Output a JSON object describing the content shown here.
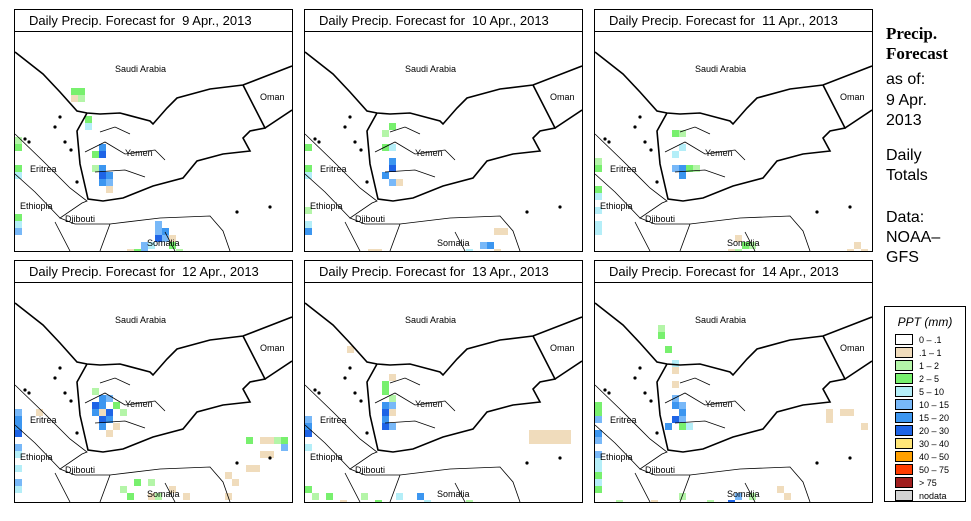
{
  "legend": {
    "title": "PPT (mm)",
    "items": [
      {
        "label": "0 – .1",
        "color": "#ffffff"
      },
      {
        "label": ".1 – 1",
        "color": "#f0dcbc"
      },
      {
        "label": "1 – 2",
        "color": "#b4f5a8"
      },
      {
        "label": "2 – 5",
        "color": "#78f06e"
      },
      {
        "label": "5 – 10",
        "color": "#b4eef8"
      },
      {
        "label": "10 – 15",
        "color": "#78b8f8"
      },
      {
        "label": "15 – 20",
        "color": "#3c96f0"
      },
      {
        "label": "20 – 30",
        "color": "#1e64e6"
      },
      {
        "label": "30 – 40",
        "color": "#ffe678"
      },
      {
        "label": "40 – 50",
        "color": "#ffa000"
      },
      {
        "label": "50 – 75",
        "color": "#ff3c00"
      },
      {
        "label": "> 75",
        "color": "#a01e1e"
      },
      {
        "label": "nodata",
        "color": "#d2d2d2"
      }
    ]
  },
  "side": {
    "title1": "Precip.",
    "title2": "Forecast",
    "asof": "as of:",
    "date1": "9 Apr.",
    "date2": "2013",
    "daily": "Daily",
    "totals": "Totals",
    "data": "Data:",
    "src1": "NOAA–",
    "src2": "GFS"
  },
  "labels": {
    "saudi": "Saudi Arabia",
    "oman": "Oman",
    "yemen": "Yemen",
    "eritrea": "Eritrea",
    "ethiopia": "Ethiopia",
    "djibouti": "Djibouti",
    "somalia": "Somalia"
  },
  "panels": [
    {
      "title": "Daily Precip. Forecast for  9 Apr., 2013",
      "cells": [
        [
          8,
          8,
          3
        ],
        [
          9,
          8,
          3
        ],
        [
          8,
          9,
          1
        ],
        [
          9,
          9,
          2
        ],
        [
          10,
          12,
          3
        ],
        [
          10,
          13,
          4
        ],
        [
          12,
          16,
          6
        ],
        [
          11,
          17,
          3
        ],
        [
          12,
          17,
          7
        ],
        [
          12,
          19,
          6
        ],
        [
          11,
          19,
          2
        ],
        [
          12,
          20,
          7
        ],
        [
          13,
          20,
          6
        ],
        [
          13,
          21,
          5
        ],
        [
          12,
          21,
          6
        ],
        [
          13,
          22,
          1
        ],
        [
          0,
          15,
          2
        ],
        [
          0,
          16,
          3
        ],
        [
          0,
          19,
          3
        ],
        [
          0,
          20,
          4
        ],
        [
          0,
          26,
          3
        ],
        [
          0,
          27,
          4
        ],
        [
          0,
          28,
          5
        ],
        [
          20,
          27,
          5
        ],
        [
          21,
          28,
          6
        ],
        [
          20,
          28,
          5
        ],
        [
          20,
          29,
          7
        ],
        [
          21,
          29,
          5
        ],
        [
          18,
          30,
          5
        ],
        [
          19,
          30,
          4
        ],
        [
          16,
          31,
          1
        ],
        [
          17,
          31,
          3
        ],
        [
          18,
          31,
          5
        ],
        [
          22,
          30,
          3
        ],
        [
          22,
          29,
          1
        ],
        [
          23,
          31,
          2
        ]
      ]
    },
    {
      "title": "Daily Precip. Forecast for  10 Apr., 2013",
      "cells": [
        [
          12,
          13,
          3
        ],
        [
          11,
          14,
          2
        ],
        [
          12,
          16,
          4
        ],
        [
          11,
          16,
          3
        ],
        [
          12,
          18,
          6
        ],
        [
          12,
          19,
          7
        ],
        [
          11,
          20,
          6
        ],
        [
          12,
          21,
          5
        ],
        [
          13,
          21,
          1
        ],
        [
          0,
          16,
          3
        ],
        [
          0,
          19,
          3
        ],
        [
          0,
          20,
          4
        ],
        [
          0,
          25,
          2
        ],
        [
          0,
          27,
          4
        ],
        [
          0,
          28,
          6
        ],
        [
          9,
          31,
          1
        ],
        [
          10,
          31,
          1
        ],
        [
          27,
          28,
          1
        ],
        [
          28,
          28,
          1
        ],
        [
          25,
          30,
          5
        ],
        [
          26,
          30,
          6
        ],
        [
          27,
          31,
          1
        ],
        [
          23,
          31,
          4
        ]
      ]
    },
    {
      "title": "Daily Precip. Forecast for  11 Apr., 2013",
      "cells": [
        [
          11,
          14,
          3
        ],
        [
          12,
          14,
          2
        ],
        [
          12,
          16,
          4
        ],
        [
          11,
          17,
          4
        ],
        [
          12,
          19,
          6
        ],
        [
          11,
          19,
          5
        ],
        [
          12,
          20,
          6
        ],
        [
          13,
          19,
          3
        ],
        [
          14,
          19,
          2
        ],
        [
          0,
          18,
          2
        ],
        [
          0,
          19,
          3
        ],
        [
          0,
          22,
          3
        ],
        [
          0,
          23,
          4
        ],
        [
          0,
          25,
          4
        ],
        [
          0,
          27,
          4
        ],
        [
          0,
          28,
          4
        ],
        [
          20,
          29,
          1
        ],
        [
          21,
          30,
          3
        ],
        [
          22,
          30,
          2
        ],
        [
          19,
          31,
          1
        ],
        [
          20,
          31,
          2
        ],
        [
          36,
          31,
          1
        ],
        [
          37,
          30,
          1
        ],
        [
          38,
          31,
          1
        ]
      ]
    },
    {
      "title": "Daily Precip. Forecast for  12 Apr., 2013",
      "cells": [
        [
          11,
          15,
          2
        ],
        [
          12,
          16,
          6
        ],
        [
          13,
          16,
          5
        ],
        [
          11,
          17,
          7
        ],
        [
          12,
          17,
          6
        ],
        [
          14,
          17,
          3
        ],
        [
          11,
          18,
          6
        ],
        [
          12,
          18,
          1
        ],
        [
          13,
          18,
          7
        ],
        [
          15,
          18,
          2
        ],
        [
          12,
          19,
          7
        ],
        [
          13,
          19,
          6
        ],
        [
          12,
          20,
          6
        ],
        [
          14,
          20,
          1
        ],
        [
          13,
          21,
          1
        ],
        [
          0,
          18,
          5
        ],
        [
          0,
          19,
          6
        ],
        [
          0,
          20,
          6
        ],
        [
          0,
          21,
          7
        ],
        [
          0,
          23,
          5
        ],
        [
          0,
          24,
          4
        ],
        [
          0,
          26,
          4
        ],
        [
          0,
          28,
          5
        ],
        [
          0,
          29,
          4
        ],
        [
          3,
          18,
          1
        ],
        [
          33,
          22,
          3
        ],
        [
          35,
          22,
          1
        ],
        [
          36,
          22,
          1
        ],
        [
          37,
          22,
          2
        ],
        [
          38,
          22,
          3
        ],
        [
          38,
          23,
          5
        ],
        [
          35,
          24,
          1
        ],
        [
          36,
          24,
          1
        ],
        [
          33,
          26,
          1
        ],
        [
          34,
          26,
          1
        ],
        [
          30,
          27,
          1
        ],
        [
          31,
          28,
          1
        ],
        [
          19,
          28,
          2
        ],
        [
          17,
          28,
          3
        ],
        [
          15,
          29,
          2
        ],
        [
          16,
          30,
          3
        ],
        [
          19,
          30,
          1
        ],
        [
          20,
          30,
          2
        ],
        [
          22,
          29,
          1
        ],
        [
          24,
          30,
          1
        ],
        [
          30,
          30,
          1
        ]
      ]
    },
    {
      "title": "Daily Precip. Forecast for  13 Apr., 2013",
      "cells": [
        [
          12,
          13,
          1
        ],
        [
          11,
          14,
          3
        ],
        [
          11,
          15,
          3
        ],
        [
          12,
          16,
          2
        ],
        [
          11,
          17,
          6
        ],
        [
          12,
          17,
          5
        ],
        [
          11,
          18,
          7
        ],
        [
          12,
          18,
          1
        ],
        [
          11,
          19,
          6
        ],
        [
          12,
          20,
          5
        ],
        [
          11,
          20,
          7
        ],
        [
          6,
          9,
          1
        ],
        [
          0,
          19,
          5
        ],
        [
          0,
          20,
          6
        ],
        [
          0,
          21,
          7
        ],
        [
          0,
          23,
          4
        ],
        [
          32,
          21,
          1
        ],
        [
          33,
          21,
          1
        ],
        [
          34,
          21,
          1
        ],
        [
          35,
          21,
          1
        ],
        [
          36,
          21,
          1
        ],
        [
          37,
          21,
          1
        ],
        [
          32,
          22,
          1
        ],
        [
          33,
          22,
          1
        ],
        [
          34,
          22,
          1
        ],
        [
          35,
          22,
          1
        ],
        [
          36,
          22,
          1
        ],
        [
          37,
          22,
          1
        ],
        [
          0,
          29,
          3
        ],
        [
          1,
          30,
          2
        ],
        [
          3,
          30,
          3
        ],
        [
          5,
          31,
          1
        ],
        [
          8,
          30,
          2
        ],
        [
          10,
          31,
          3
        ],
        [
          13,
          30,
          4
        ],
        [
          16,
          30,
          6
        ],
        [
          17,
          31,
          4
        ],
        [
          23,
          31,
          2
        ]
      ]
    },
    {
      "title": "Daily Precip. Forecast for  14 Apr., 2013",
      "cells": [
        [
          9,
          6,
          2
        ],
        [
          9,
          7,
          3
        ],
        [
          10,
          9,
          3
        ],
        [
          11,
          11,
          4
        ],
        [
          11,
          12,
          1
        ],
        [
          11,
          14,
          1
        ],
        [
          11,
          16,
          5
        ],
        [
          11,
          17,
          6
        ],
        [
          12,
          17,
          5
        ],
        [
          12,
          18,
          6
        ],
        [
          11,
          19,
          7
        ],
        [
          12,
          19,
          5
        ],
        [
          12,
          20,
          3
        ],
        [
          13,
          20,
          4
        ],
        [
          10,
          20,
          6
        ],
        [
          0,
          17,
          3
        ],
        [
          0,
          18,
          3
        ],
        [
          0,
          19,
          5
        ],
        [
          0,
          21,
          6
        ],
        [
          0,
          22,
          5
        ],
        [
          0,
          24,
          5
        ],
        [
          0,
          25,
          4
        ],
        [
          0,
          26,
          4
        ],
        [
          0,
          27,
          3
        ],
        [
          0,
          28,
          4
        ],
        [
          0,
          29,
          3
        ],
        [
          3,
          31,
          2
        ],
        [
          8,
          31,
          1
        ],
        [
          12,
          30,
          2
        ],
        [
          16,
          31,
          2
        ],
        [
          20,
          30,
          5
        ],
        [
          19,
          31,
          7
        ],
        [
          22,
          30,
          2
        ],
        [
          26,
          29,
          1
        ],
        [
          27,
          30,
          1
        ],
        [
          33,
          18,
          1
        ],
        [
          35,
          18,
          1
        ],
        [
          36,
          18,
          1
        ],
        [
          33,
          19,
          1
        ],
        [
          38,
          20,
          1
        ]
      ]
    }
  ]
}
